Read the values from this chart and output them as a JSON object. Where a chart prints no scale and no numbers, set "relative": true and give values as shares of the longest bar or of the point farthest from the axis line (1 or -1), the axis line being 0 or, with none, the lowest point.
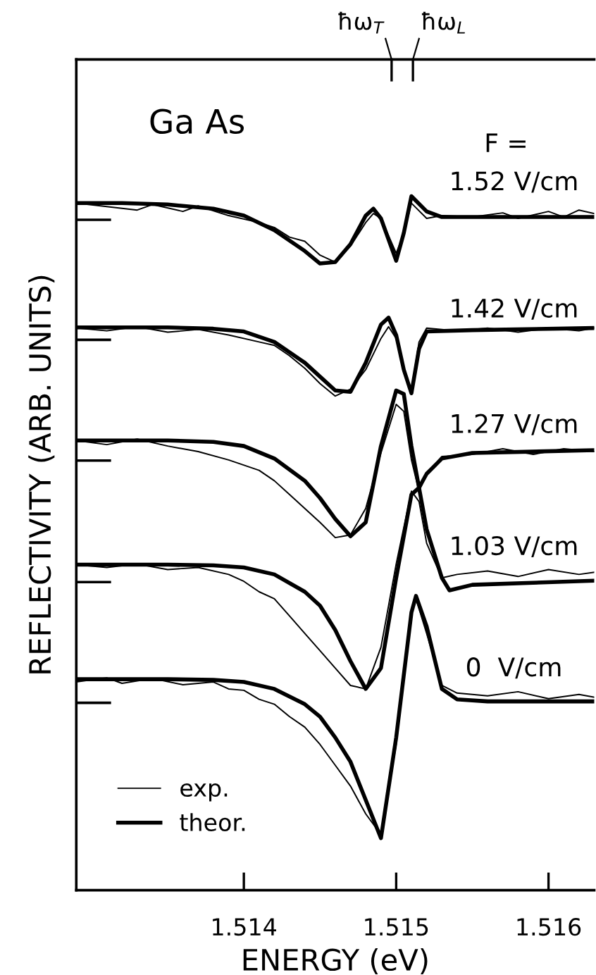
{
  "chart_data": {
    "type": "line",
    "relative": true,
    "xlabel": "ENERGY (eV)",
    "ylabel": "REFLECTIVITY (ARB. UNITS)",
    "xlim": [
      1.5129,
      1.5163
    ],
    "xticks": [
      1.514,
      1.515,
      1.516
    ],
    "ref_lines": [
      {
        "axis": "x",
        "value": 1.51497,
        "label": "ħω$_{T}$"
      },
      {
        "axis": "x",
        "value": 1.51511,
        "label": "ħω$_{L}$"
      }
    ],
    "tick_labels": "x",
    "grid": false,
    "legend": "bottom left",
    "annotations": [
      "Ga As",
      "F =",
      "1.52 V/cm",
      "1.42 V/cm",
      "1.27 V/cm",
      "1.03 V/cm",
      "0  V/cm"
    ],
    "series": [
      {
        "name": "exp.",
        "color": "#000000",
        "x": [
          1.5129,
          1.5131,
          1.5133,
          1.5134,
          1.5136,
          1.5137,
          1.5139,
          1.5141,
          1.5142,
          1.5143,
          1.5144,
          1.5145,
          1.5146,
          1.5147,
          1.5148,
          1.51485,
          1.5149,
          1.515,
          1.51505,
          1.5151,
          1.5152,
          1.5153,
          1.5155,
          1.5157,
          1.5158,
          1.516,
          1.5161,
          1.5162,
          1.5163
        ],
        "values": [
          0.99,
          0.985,
          0.98,
          0.988,
          0.978,
          0.986,
          0.972,
          0.962,
          0.955,
          0.941,
          0.935,
          0.915,
          0.905,
          0.928,
          0.962,
          0.975,
          0.968,
          0.918,
          0.945,
          0.99,
          0.968,
          0.972,
          0.97,
          0.976,
          0.968,
          0.978,
          0.97,
          0.98,
          0.975
        ]
      },
      {
        "name": "theor.",
        "color": "#000000",
        "x": [
          1.5129,
          1.5132,
          1.5135,
          1.5138,
          1.514,
          1.5142,
          1.5144,
          1.5145,
          1.5146,
          1.5147,
          1.5148,
          1.51485,
          1.5149,
          1.515,
          1.51505,
          1.5151,
          1.5152,
          1.5153,
          1.5163
        ],
        "values": [
          0.99,
          0.99,
          0.988,
          0.982,
          0.972,
          0.951,
          0.921,
          0.903,
          0.905,
          0.931,
          0.972,
          0.982,
          0.968,
          0.907,
          0.947,
          1.0,
          0.978,
          0.97,
          0.97
        ]
      },
      {
        "color": "#000000",
        "x": [
          1.5129,
          1.5131,
          1.5133,
          1.5135,
          1.5137,
          1.5139,
          1.5141,
          1.5142,
          1.5143,
          1.5144,
          1.5145,
          1.5146,
          1.5147,
          1.5148,
          1.5149,
          1.51495,
          1.515,
          1.51505,
          1.5151,
          1.51515,
          1.5152,
          1.5154,
          1.5156,
          1.5158,
          1.516,
          1.5162,
          1.5163
        ],
        "values": [
          0.81,
          0.806,
          0.812,
          0.804,
          0.808,
          0.8,
          0.79,
          0.785,
          0.77,
          0.752,
          0.73,
          0.712,
          0.722,
          0.75,
          0.795,
          0.812,
          0.795,
          0.745,
          0.72,
          0.79,
          0.81,
          0.806,
          0.81,
          0.804,
          0.81,
          0.806,
          0.81
        ]
      },
      {
        "color": "#000000",
        "x": [
          1.5129,
          1.5132,
          1.5135,
          1.5138,
          1.514,
          1.5142,
          1.5144,
          1.5145,
          1.5146,
          1.5147,
          1.5148,
          1.5149,
          1.51495,
          1.515,
          1.51505,
          1.5151,
          1.51515,
          1.5152,
          1.5155,
          1.5163
        ],
        "values": [
          0.811,
          0.811,
          0.811,
          0.809,
          0.805,
          0.79,
          0.76,
          0.74,
          0.72,
          0.718,
          0.76,
          0.815,
          0.825,
          0.8,
          0.75,
          0.716,
          0.78,
          0.805,
          0.807,
          0.81
        ]
      },
      {
        "color": "#000000",
        "x": [
          1.5129,
          1.5131,
          1.5133,
          1.5135,
          1.5137,
          1.5139,
          1.5141,
          1.5142,
          1.5143,
          1.5144,
          1.5145,
          1.5146,
          1.5147,
          1.5148,
          1.5149,
          1.515,
          1.51505,
          1.5151,
          1.51515,
          1.5152,
          1.5153,
          1.5155,
          1.5157,
          1.5159,
          1.5161,
          1.5163
        ],
        "values": [
          0.648,
          0.642,
          0.65,
          0.64,
          0.632,
          0.62,
          0.605,
          0.59,
          0.57,
          0.55,
          0.53,
          0.508,
          0.512,
          0.55,
          0.63,
          0.7,
          0.69,
          0.62,
          0.575,
          0.6,
          0.625,
          0.628,
          0.636,
          0.628,
          0.636,
          0.632
        ]
      },
      {
        "color": "#000000",
        "x": [
          1.5129,
          1.5132,
          1.5135,
          1.5138,
          1.514,
          1.5142,
          1.5144,
          1.5145,
          1.5146,
          1.5147,
          1.5148,
          1.5149,
          1.515,
          1.51505,
          1.5151,
          1.51515,
          1.5152,
          1.5153,
          1.5155,
          1.5163
        ],
        "values": [
          0.648,
          0.648,
          0.648,
          0.646,
          0.64,
          0.622,
          0.59,
          0.565,
          0.535,
          0.51,
          0.53,
          0.64,
          0.72,
          0.715,
          0.64,
          0.58,
          0.6,
          0.622,
          0.63,
          0.634
        ]
      },
      {
        "color": "#000000",
        "x": [
          1.5129,
          1.5131,
          1.5133,
          1.5135,
          1.5137,
          1.5139,
          1.514,
          1.5141,
          1.5142,
          1.5143,
          1.5144,
          1.5145,
          1.5146,
          1.5147,
          1.5148,
          1.5149,
          1.515,
          1.5151,
          1.51515,
          1.5152,
          1.5153,
          1.5154,
          1.5156,
          1.5158,
          1.516,
          1.5162,
          1.5163
        ],
        "values": [
          0.469,
          0.465,
          0.47,
          0.462,
          0.465,
          0.455,
          0.445,
          0.43,
          0.42,
          0.395,
          0.37,
          0.345,
          0.32,
          0.295,
          0.29,
          0.35,
          0.47,
          0.575,
          0.56,
          0.5,
          0.45,
          0.455,
          0.46,
          0.452,
          0.462,
          0.455,
          0.458
        ]
      },
      {
        "color": "#000000",
        "x": [
          1.5129,
          1.5132,
          1.5135,
          1.5138,
          1.514,
          1.5142,
          1.5144,
          1.5145,
          1.5146,
          1.5147,
          1.5148,
          1.5149,
          1.515,
          1.5151,
          1.51515,
          1.5152,
          1.5153,
          1.51535,
          1.5155,
          1.5163
        ],
        "values": [
          0.469,
          0.469,
          0.469,
          0.468,
          0.465,
          0.455,
          0.43,
          0.41,
          0.375,
          0.33,
          0.29,
          0.32,
          0.45,
          0.57,
          0.58,
          0.52,
          0.45,
          0.432,
          0.44,
          0.446
        ]
      },
      {
        "color": "#000000",
        "x": [
          1.5129,
          1.5131,
          1.5132,
          1.5134,
          1.5136,
          1.5138,
          1.5139,
          1.514,
          1.5141,
          1.5142,
          1.5143,
          1.5144,
          1.5145,
          1.5146,
          1.5147,
          1.5148,
          1.5149,
          1.515,
          1.5151,
          1.51513,
          1.5152,
          1.5153,
          1.5154,
          1.5156,
          1.5158,
          1.516,
          1.5162,
          1.5163
        ],
        "values": [
          0.3,
          0.306,
          0.298,
          0.305,
          0.296,
          0.3,
          0.29,
          0.288,
          0.275,
          0.268,
          0.25,
          0.235,
          0.21,
          0.18,
          0.15,
          0.11,
          0.08,
          0.21,
          0.4,
          0.42,
          0.37,
          0.295,
          0.284,
          0.28,
          0.286,
          0.276,
          0.282,
          0.278
        ]
      },
      {
        "color": "#000000",
        "x": [
          1.5129,
          1.5132,
          1.5135,
          1.5138,
          1.514,
          1.5142,
          1.5144,
          1.5145,
          1.5146,
          1.5147,
          1.5148,
          1.5149,
          1.515,
          1.5151,
          1.51513,
          1.5152,
          1.5153,
          1.5154,
          1.5156,
          1.5163
        ],
        "values": [
          0.304,
          0.304,
          0.304,
          0.303,
          0.3,
          0.29,
          0.268,
          0.25,
          0.22,
          0.185,
          0.13,
          0.075,
          0.22,
          0.4,
          0.424,
          0.38,
          0.29,
          0.275,
          0.272,
          0.272
        ]
      },
      {
        "color": "#000000",
        "x": [
          1.5129,
          1.51312
        ],
        "values": [
          0.966,
          0.966
        ]
      },
      {
        "color": "#000000",
        "x": [
          1.5129,
          1.51312
        ],
        "values": [
          0.793,
          0.793
        ]
      },
      {
        "color": "#000000",
        "x": [
          1.5129,
          1.51312
        ],
        "values": [
          0.619,
          0.619
        ]
      },
      {
        "color": "#000000",
        "x": [
          1.5129,
          1.51312
        ],
        "values": [
          0.444,
          0.444
        ]
      },
      {
        "color": "#000000",
        "x": [
          1.5129,
          1.51312
        ],
        "values": [
          0.27,
          0.27
        ]
      }
    ]
  }
}
